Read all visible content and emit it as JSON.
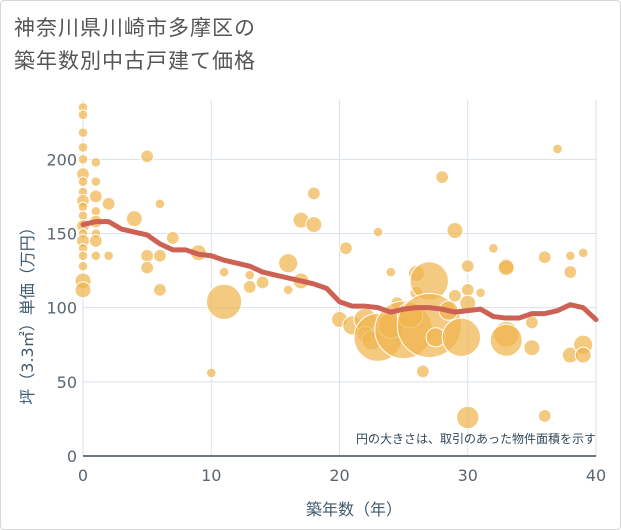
{
  "chart_data": {
    "type": "scatter",
    "title_lines": [
      "神奈川県川崎市多摩区の",
      "築年数別中古戸建て価格"
    ],
    "xlabel": "築年数（年）",
    "ylabel": "坪（3.3㎡）単価（万円）",
    "xlim": [
      0,
      40
    ],
    "ylim": [
      0,
      240
    ],
    "x_ticks": [
      0,
      10,
      20,
      30,
      40
    ],
    "y_ticks": [
      0,
      50,
      100,
      150,
      200
    ],
    "annotation": "円の大きさは、取引のあった物件面積を示す",
    "colors": {
      "bubble": "#f0b64f",
      "bubble_stroke": "#ffffff",
      "trend": "#cd6154",
      "grid": "#d9e2ea"
    },
    "bubbles": [
      {
        "x": 0,
        "y": 235,
        "s": 3
      },
      {
        "x": 0,
        "y": 230,
        "s": 3
      },
      {
        "x": 0,
        "y": 218,
        "s": 3
      },
      {
        "x": 0,
        "y": 208,
        "s": 3
      },
      {
        "x": 0,
        "y": 200,
        "s": 3
      },
      {
        "x": 0,
        "y": 190,
        "s": 4
      },
      {
        "x": 0,
        "y": 185,
        "s": 3
      },
      {
        "x": 0,
        "y": 178,
        "s": 3
      },
      {
        "x": 0,
        "y": 172,
        "s": 4
      },
      {
        "x": 0,
        "y": 168,
        "s": 3
      },
      {
        "x": 0,
        "y": 162,
        "s": 3
      },
      {
        "x": 0,
        "y": 155,
        "s": 4
      },
      {
        "x": 0,
        "y": 150,
        "s": 3
      },
      {
        "x": 0,
        "y": 145,
        "s": 4
      },
      {
        "x": 0,
        "y": 140,
        "s": 3
      },
      {
        "x": 0,
        "y": 135,
        "s": 3
      },
      {
        "x": 0,
        "y": 128,
        "s": 3
      },
      {
        "x": 0,
        "y": 118,
        "s": 5
      },
      {
        "x": 0,
        "y": 112,
        "s": 5
      },
      {
        "x": 1,
        "y": 198,
        "s": 3
      },
      {
        "x": 1,
        "y": 185,
        "s": 3
      },
      {
        "x": 1,
        "y": 175,
        "s": 4
      },
      {
        "x": 1,
        "y": 165,
        "s": 3
      },
      {
        "x": 1,
        "y": 158,
        "s": 4
      },
      {
        "x": 1,
        "y": 150,
        "s": 3
      },
      {
        "x": 1,
        "y": 145,
        "s": 4
      },
      {
        "x": 1,
        "y": 135,
        "s": 3
      },
      {
        "x": 2,
        "y": 170,
        "s": 4
      },
      {
        "x": 2,
        "y": 135,
        "s": 3
      },
      {
        "x": 4,
        "y": 160,
        "s": 5
      },
      {
        "x": 5,
        "y": 202,
        "s": 4
      },
      {
        "x": 5,
        "y": 135,
        "s": 4
      },
      {
        "x": 5,
        "y": 127,
        "s": 4
      },
      {
        "x": 6,
        "y": 170,
        "s": 3
      },
      {
        "x": 6,
        "y": 135,
        "s": 4
      },
      {
        "x": 6,
        "y": 112,
        "s": 4
      },
      {
        "x": 7,
        "y": 147,
        "s": 4
      },
      {
        "x": 9,
        "y": 137,
        "s": 5
      },
      {
        "x": 10,
        "y": 56,
        "s": 3
      },
      {
        "x": 11,
        "y": 104,
        "s": 11
      },
      {
        "x": 11,
        "y": 124,
        "s": 3
      },
      {
        "x": 13,
        "y": 122,
        "s": 3
      },
      {
        "x": 13,
        "y": 114,
        "s": 4
      },
      {
        "x": 14,
        "y": 117,
        "s": 4
      },
      {
        "x": 16,
        "y": 130,
        "s": 6
      },
      {
        "x": 16,
        "y": 112,
        "s": 3
      },
      {
        "x": 17,
        "y": 159,
        "s": 5
      },
      {
        "x": 17,
        "y": 118,
        "s": 5
      },
      {
        "x": 18,
        "y": 177,
        "s": 4
      },
      {
        "x": 18,
        "y": 156,
        "s": 5
      },
      {
        "x": 20,
        "y": 92,
        "s": 5
      },
      {
        "x": 20.5,
        "y": 140,
        "s": 4
      },
      {
        "x": 21,
        "y": 88,
        "s": 6
      },
      {
        "x": 22,
        "y": 92,
        "s": 7
      },
      {
        "x": 22,
        "y": 82,
        "s": 5
      },
      {
        "x": 22.5,
        "y": 78,
        "s": 6
      },
      {
        "x": 23,
        "y": 151,
        "s": 3
      },
      {
        "x": 23,
        "y": 80,
        "s": 15
      },
      {
        "x": 24,
        "y": 124,
        "s": 3
      },
      {
        "x": 24,
        "y": 88,
        "s": 8
      },
      {
        "x": 24.5,
        "y": 103,
        "s": 4
      },
      {
        "x": 25,
        "y": 85,
        "s": 18
      },
      {
        "x": 25.5,
        "y": 95,
        "s": 8
      },
      {
        "x": 26,
        "y": 123,
        "s": 5
      },
      {
        "x": 26,
        "y": 110,
        "s": 4
      },
      {
        "x": 26.5,
        "y": 57,
        "s": 4
      },
      {
        "x": 27,
        "y": 118,
        "s": 12
      },
      {
        "x": 27,
        "y": 88,
        "s": 20
      },
      {
        "x": 27.5,
        "y": 80,
        "s": 6
      },
      {
        "x": 28,
        "y": 188,
        "s": 4
      },
      {
        "x": 28.5,
        "y": 98,
        "s": 6
      },
      {
        "x": 29,
        "y": 152,
        "s": 5
      },
      {
        "x": 29,
        "y": 108,
        "s": 4
      },
      {
        "x": 29.5,
        "y": 80,
        "s": 12
      },
      {
        "x": 30,
        "y": 128,
        "s": 4
      },
      {
        "x": 30,
        "y": 112,
        "s": 4
      },
      {
        "x": 30,
        "y": 103,
        "s": 5
      },
      {
        "x": 30,
        "y": 26,
        "s": 7
      },
      {
        "x": 31,
        "y": 110,
        "s": 3
      },
      {
        "x": 32,
        "y": 140,
        "s": 3
      },
      {
        "x": 33,
        "y": 128,
        "s": 5
      },
      {
        "x": 33,
        "y": 127,
        "s": 5
      },
      {
        "x": 33,
        "y": 82,
        "s": 8
      },
      {
        "x": 33,
        "y": 78,
        "s": 10
      },
      {
        "x": 35,
        "y": 90,
        "s": 4
      },
      {
        "x": 35,
        "y": 73,
        "s": 5
      },
      {
        "x": 36,
        "y": 134,
        "s": 4
      },
      {
        "x": 36,
        "y": 27,
        "s": 4
      },
      {
        "x": 37,
        "y": 207,
        "s": 3
      },
      {
        "x": 38,
        "y": 135,
        "s": 3
      },
      {
        "x": 38,
        "y": 124,
        "s": 4
      },
      {
        "x": 38,
        "y": 68,
        "s": 5
      },
      {
        "x": 39,
        "y": 137,
        "s": 3
      },
      {
        "x": 39,
        "y": 75,
        "s": 6
      },
      {
        "x": 39,
        "y": 68,
        "s": 5
      }
    ],
    "trend": {
      "x": [
        0,
        1,
        2,
        3,
        4,
        5,
        6,
        7,
        8,
        9,
        10,
        11,
        12,
        13,
        14,
        15,
        16,
        17,
        18,
        19,
        20,
        21,
        22,
        23,
        24,
        25,
        26,
        27,
        28,
        29,
        30,
        31,
        32,
        33,
        34,
        35,
        36,
        37,
        38,
        39,
        40
      ],
      "y": [
        156,
        158,
        158,
        153,
        151,
        149,
        143,
        139,
        139,
        136,
        135,
        132,
        130,
        128,
        124,
        122,
        120,
        118,
        116,
        113,
        104,
        101,
        101,
        100,
        97,
        99,
        100,
        100,
        99,
        97,
        98,
        99,
        94,
        93,
        93,
        96,
        96,
        98,
        102,
        100,
        92
      ]
    }
  }
}
